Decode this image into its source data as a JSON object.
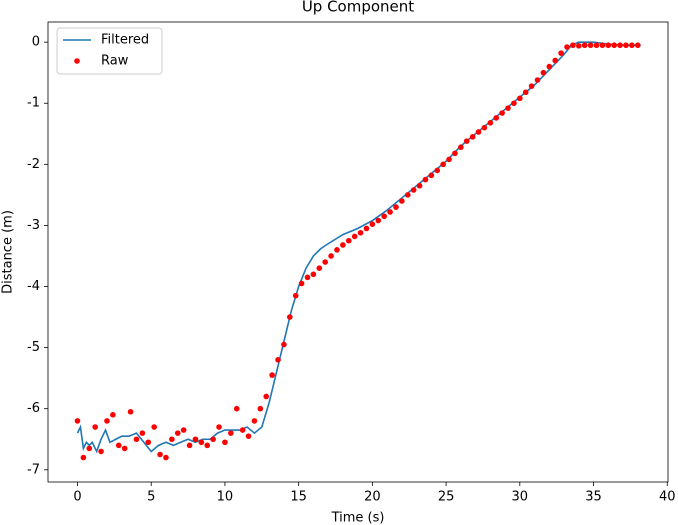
{
  "chart_data": {
    "type": "line",
    "title": "Up Component",
    "x_label": "Time (s)",
    "y_label": "Distance (m)",
    "xlim": [
      -2.0,
      40.05
    ],
    "ylim": [
      -7.2,
      0.33
    ],
    "xticks": [
      0,
      5,
      10,
      15,
      20,
      25,
      30,
      35,
      40
    ],
    "yticks": [
      -7,
      -6,
      -5,
      -4,
      -3,
      -2,
      -1,
      0
    ],
    "legend": "upper left",
    "series": [
      {
        "name": "Filtered",
        "type": "line",
        "color": "#1f77b4",
        "x": [
          0,
          0.2,
          0.4,
          0.6,
          0.8,
          1,
          1.3,
          1.6,
          1.9,
          2.2,
          2.6,
          3,
          3.5,
          4,
          4.5,
          5,
          5.5,
          6,
          6.5,
          7,
          7.5,
          8,
          8.5,
          9,
          9.5,
          10,
          10.5,
          11,
          11.5,
          12,
          12.5,
          13,
          13.5,
          14,
          14.5,
          15,
          15.5,
          16,
          16.5,
          17,
          18,
          19,
          20,
          21,
          22,
          23,
          24,
          25,
          26,
          27,
          28,
          29,
          30,
          31,
          32,
          33,
          33.5,
          34,
          35,
          36,
          37,
          38.2
        ],
        "values": [
          -6.4,
          -6.3,
          -6.65,
          -6.55,
          -6.6,
          -6.55,
          -6.7,
          -6.5,
          -6.35,
          -6.55,
          -6.5,
          -6.45,
          -6.45,
          -6.4,
          -6.55,
          -6.7,
          -6.6,
          -6.55,
          -6.6,
          -6.55,
          -6.5,
          -6.55,
          -6.5,
          -6.5,
          -6.4,
          -6.35,
          -6.35,
          -6.35,
          -6.3,
          -6.4,
          -6.3,
          -5.9,
          -5.4,
          -4.9,
          -4.4,
          -4.0,
          -3.7,
          -3.5,
          -3.38,
          -3.3,
          -3.15,
          -3.05,
          -2.92,
          -2.75,
          -2.55,
          -2.35,
          -2.15,
          -1.95,
          -1.7,
          -1.5,
          -1.3,
          -1.1,
          -0.9,
          -0.7,
          -0.45,
          -0.2,
          -0.05,
          0.0,
          0.0,
          -0.03,
          -0.05,
          -0.05
        ]
      },
      {
        "name": "Raw",
        "type": "scatter",
        "color": "#ff0000",
        "x": [
          0,
          0.4,
          0.8,
          1.2,
          1.6,
          2,
          2.4,
          2.8,
          3.2,
          3.6,
          4,
          4.4,
          4.8,
          5.2,
          5.6,
          6,
          6.4,
          6.8,
          7.2,
          7.6,
          8,
          8.4,
          8.8,
          9.2,
          9.6,
          10,
          10.4,
          10.8,
          11.2,
          11.6,
          12,
          12.4,
          12.8,
          13.2,
          13.6,
          14,
          14.4,
          14.8,
          15.2,
          15.6,
          16,
          16.4,
          16.8,
          17.2,
          17.6,
          18,
          18.4,
          18.8,
          19.2,
          19.6,
          20,
          20.4,
          20.8,
          21.2,
          21.6,
          22,
          22.4,
          22.8,
          23.2,
          23.6,
          24,
          24.4,
          24.8,
          25.2,
          25.6,
          26,
          26.4,
          26.8,
          27.2,
          27.6,
          28,
          28.4,
          28.8,
          29.2,
          29.6,
          30,
          30.4,
          30.8,
          31.2,
          31.6,
          32,
          32.4,
          32.8,
          33.2,
          33.6,
          34,
          34.4,
          34.8,
          35.2,
          35.6,
          36,
          36.4,
          36.8,
          37.2,
          37.6,
          38
        ],
        "values": [
          -6.2,
          -6.8,
          -6.65,
          -6.3,
          -6.7,
          -6.2,
          -6.1,
          -6.6,
          -6.65,
          -6.05,
          -6.5,
          -6.4,
          -6.55,
          -6.3,
          -6.75,
          -6.8,
          -6.5,
          -6.4,
          -6.35,
          -6.6,
          -6.5,
          -6.55,
          -6.6,
          -6.5,
          -6.3,
          -6.55,
          -6.4,
          -6.0,
          -6.35,
          -6.45,
          -6.2,
          -6.0,
          -5.8,
          -5.45,
          -5.2,
          -4.95,
          -4.5,
          -4.15,
          -3.95,
          -3.85,
          -3.8,
          -3.7,
          -3.6,
          -3.5,
          -3.4,
          -3.32,
          -3.25,
          -3.18,
          -3.12,
          -3.05,
          -2.98,
          -2.92,
          -2.85,
          -2.78,
          -2.7,
          -2.6,
          -2.5,
          -2.42,
          -2.35,
          -2.25,
          -2.18,
          -2.1,
          -2.0,
          -1.92,
          -1.82,
          -1.72,
          -1.62,
          -1.55,
          -1.47,
          -1.4,
          -1.32,
          -1.24,
          -1.16,
          -1.08,
          -1.0,
          -0.92,
          -0.82,
          -0.72,
          -0.62,
          -0.5,
          -0.4,
          -0.3,
          -0.18,
          -0.08,
          -0.05,
          -0.06,
          -0.05,
          -0.05,
          -0.05,
          -0.05,
          -0.05,
          -0.05,
          -0.05,
          -0.05,
          -0.05,
          -0.05
        ]
      }
    ]
  }
}
